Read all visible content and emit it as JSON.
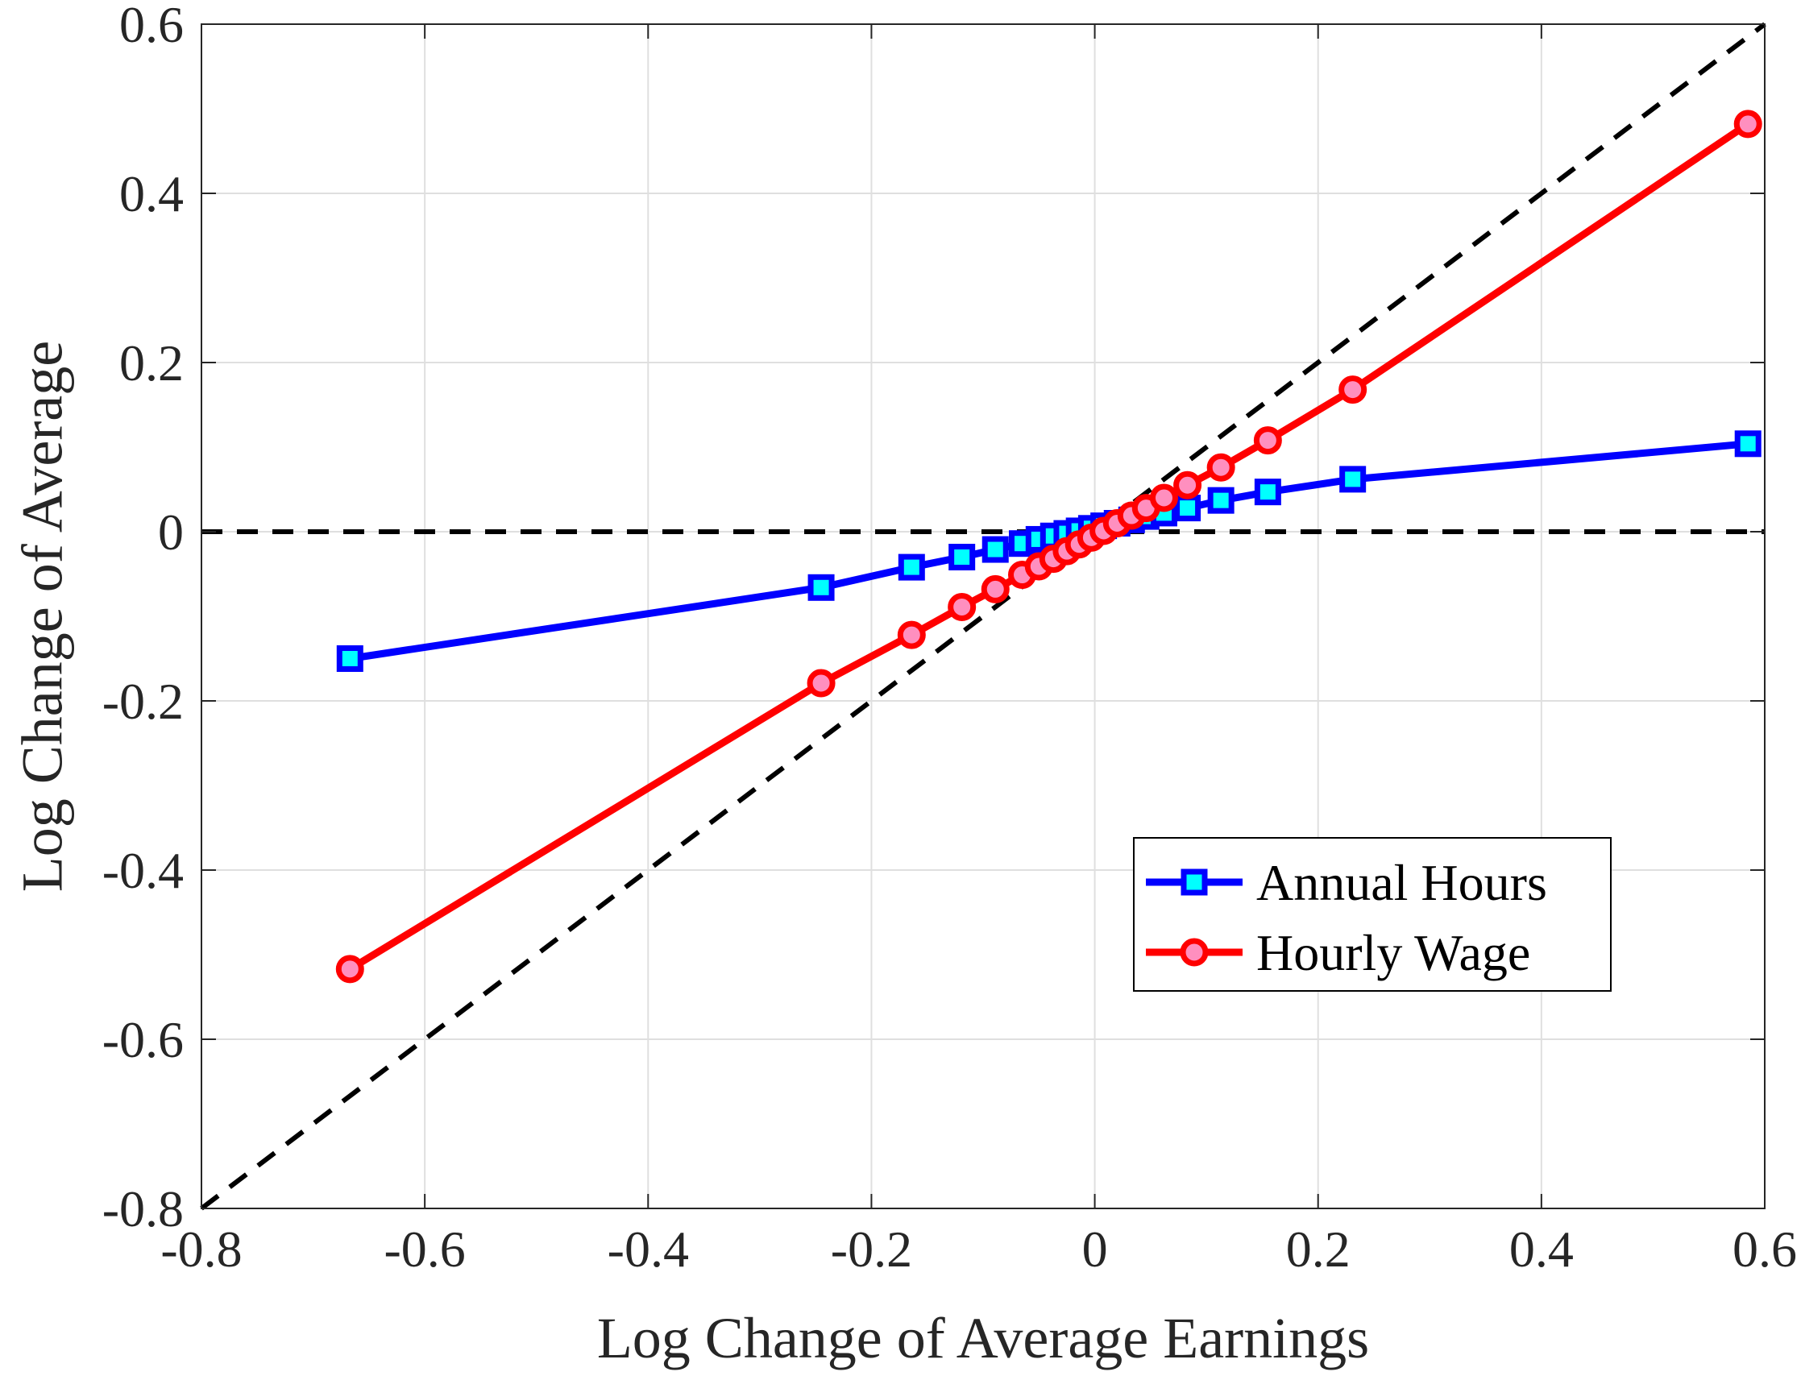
{
  "chart_data": {
    "type": "line",
    "xlabel": "Log Change of Average Earnings",
    "ylabel": "Log Change of Average",
    "xlim": [
      -0.8,
      0.6
    ],
    "ylim": [
      -0.8,
      0.6
    ],
    "xticks": [
      -0.8,
      -0.6,
      -0.4,
      -0.2,
      0,
      0.2,
      0.4,
      0.6
    ],
    "yticks": [
      -0.8,
      -0.6,
      -0.4,
      -0.2,
      0,
      0.2,
      0.4,
      0.6
    ],
    "xtick_labels": [
      "-0.8",
      "-0.6",
      "-0.4",
      "-0.2",
      "0",
      "0.2",
      "0.4",
      "0.6"
    ],
    "ytick_labels": [
      "-0.8",
      "-0.6",
      "-0.4",
      "-0.2",
      "0",
      "0.2",
      "0.4",
      "0.6"
    ],
    "grid": true,
    "legend_position": "bottom-right",
    "reference_lines": [
      {
        "kind": "diagonal",
        "slope": 1,
        "intercept": 0,
        "style": "dashed",
        "color": "#000000"
      },
      {
        "kind": "horizontal",
        "y": 0,
        "style": "dashed",
        "color": "#000000"
      }
    ],
    "series": [
      {
        "name": "Annual Hours",
        "color": "#0000ff",
        "marker": "square",
        "marker_fill": "#00ffff",
        "x": [
          -0.667,
          -0.245,
          -0.164,
          -0.119,
          -0.089,
          -0.065,
          -0.05,
          -0.037,
          -0.025,
          -0.014,
          -0.003,
          0.008,
          0.02,
          0.033,
          0.046,
          0.062,
          0.083,
          0.113,
          0.155,
          0.231,
          0.585
        ],
        "y": [
          -0.15,
          -0.066,
          -0.042,
          -0.03,
          -0.021,
          -0.014,
          -0.009,
          -0.005,
          -0.002,
          0.001,
          0.004,
          0.007,
          0.01,
          0.014,
          0.018,
          0.022,
          0.028,
          0.037,
          0.047,
          0.062,
          0.104
        ]
      },
      {
        "name": "Hourly Wage",
        "color": "#ff0000",
        "marker": "circle",
        "marker_fill": "#ff8fbf",
        "x": [
          -0.667,
          -0.245,
          -0.164,
          -0.119,
          -0.089,
          -0.065,
          -0.05,
          -0.037,
          -0.025,
          -0.014,
          -0.003,
          0.008,
          0.02,
          0.033,
          0.046,
          0.062,
          0.083,
          0.113,
          0.155,
          0.231,
          0.585
        ],
        "y": [
          -0.517,
          -0.179,
          -0.122,
          -0.089,
          -0.068,
          -0.051,
          -0.041,
          -0.032,
          -0.023,
          -0.015,
          -0.007,
          0.001,
          0.01,
          0.019,
          0.028,
          0.04,
          0.055,
          0.076,
          0.108,
          0.168,
          0.482
        ]
      }
    ]
  }
}
